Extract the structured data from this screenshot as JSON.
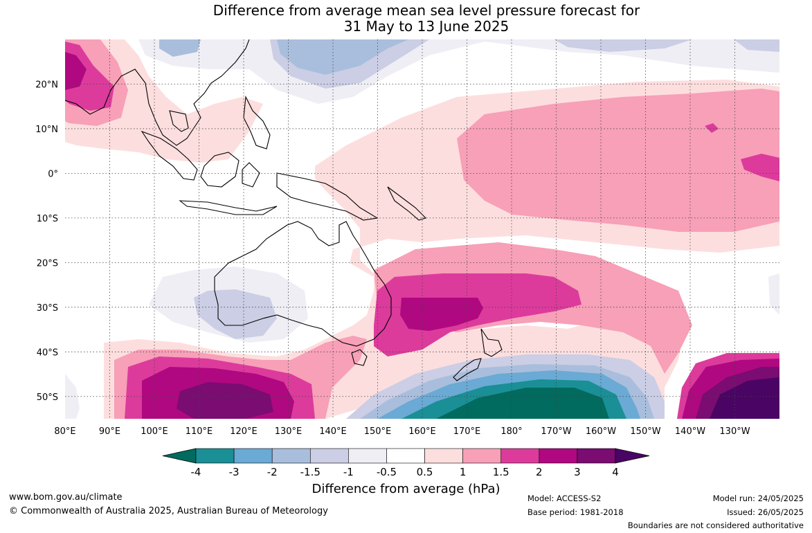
{
  "title": {
    "line1": "Difference from average mean sea level pressure forecast for",
    "line2": "31 May to 13 June 2025"
  },
  "map": {
    "lat_labels": [
      "20°N",
      "10°N",
      "0°",
      "10°S",
      "20°S",
      "30°S",
      "40°S",
      "50°S"
    ],
    "lon_labels": [
      "80°E",
      "90°E",
      "100°E",
      "110°E",
      "120°E",
      "130°E",
      "140°E",
      "150°E",
      "160°E",
      "170°E",
      "180°",
      "170°W",
      "160°W",
      "150°W",
      "140°W",
      "130°W"
    ],
    "extent": {
      "lon_min": 80,
      "lon_max": 240,
      "lat_min": -55,
      "lat_max": 30
    }
  },
  "legend": {
    "ticks": [
      "-4",
      "-3",
      "-2",
      "-1.5",
      "-1",
      "-0.5",
      "0.5",
      "1",
      "1.5",
      "2",
      "3",
      "4"
    ],
    "colors": [
      "#006b5e",
      "#1a8f96",
      "#6aaad4",
      "#a9bedc",
      "#cbcee4",
      "#efeef5",
      "#ffffff",
      "#fddede",
      "#f7a0b8",
      "#dc3b9c",
      "#b00880",
      "#7a0c72",
      "#4a0464"
    ],
    "caption": "Difference from average (hPa)"
  },
  "footer": {
    "website": "www.bom.gov.au/climate",
    "copyright": "© Commonwealth of Australia 2025, Australian Bureau of Meteorology",
    "model": "Model: ACCESS-S2",
    "base_period": "Base period: 1981-2018",
    "model_run": "Model run: 24/05/2025",
    "issued": "Issued: 26/05/2025",
    "disclaimer": "Boundaries are not considered authoritative"
  }
}
